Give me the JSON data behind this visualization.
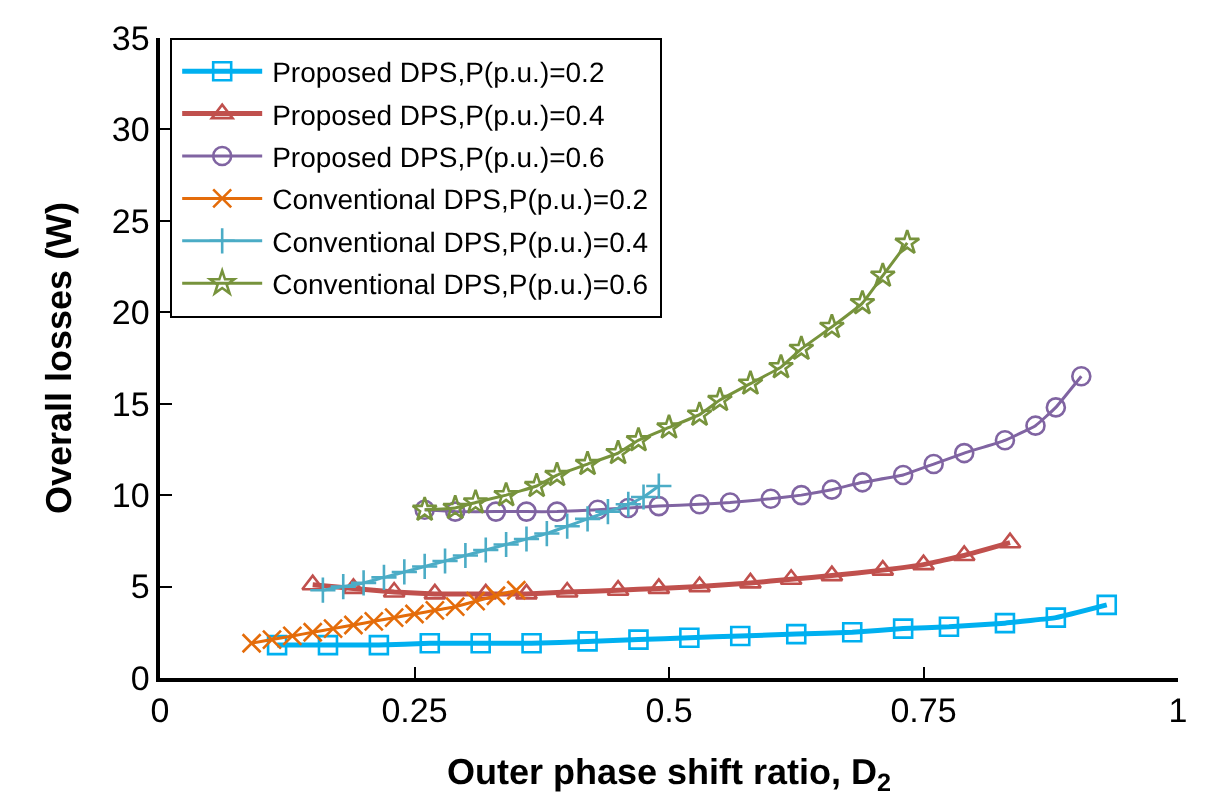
{
  "chart_data": {
    "type": "line",
    "xlabel": "Outer phase shift ratio, D$_{2}$",
    "ylabel": "Overall losses (W)",
    "xlim": [
      0,
      1
    ],
    "xticks": [
      0,
      0.25,
      0.5,
      0.75,
      1
    ],
    "ylim": [
      0,
      35
    ],
    "yticks": [
      0,
      5,
      10,
      15,
      20,
      25,
      30,
      35
    ],
    "legend": "top left",
    "series": [
      {
        "name": "Proposed DPS,P(p.u.)=0.2",
        "color": "#00b0f0",
        "marker": "square",
        "x": [
          0.115,
          0.165,
          0.215,
          0.265,
          0.315,
          0.365,
          0.42,
          0.47,
          0.52,
          0.57,
          0.625,
          0.68,
          0.73,
          0.775,
          0.83,
          0.88,
          0.93
        ],
        "values": [
          1.8,
          1.8,
          1.8,
          1.9,
          1.9,
          1.9,
          2.0,
          2.1,
          2.2,
          2.3,
          2.4,
          2.5,
          2.7,
          2.8,
          3.0,
          3.3,
          4.0
        ]
      },
      {
        "name": "Proposed DPS,P(p.u.)=0.4",
        "color": "#c0504d",
        "marker": "triangle",
        "x": [
          0.15,
          0.19,
          0.23,
          0.27,
          0.32,
          0.36,
          0.4,
          0.45,
          0.49,
          0.53,
          0.58,
          0.62,
          0.66,
          0.71,
          0.75,
          0.79,
          0.835
        ],
        "values": [
          5.1,
          4.9,
          4.7,
          4.6,
          4.6,
          4.6,
          4.7,
          4.8,
          4.9,
          5.0,
          5.2,
          5.4,
          5.6,
          5.9,
          6.2,
          6.7,
          7.4
        ]
      },
      {
        "name": "Proposed DPS,P(p.u.)=0.6",
        "color": "#8064a2",
        "marker": "circle",
        "x": [
          0.26,
          0.29,
          0.33,
          0.36,
          0.39,
          0.43,
          0.46,
          0.49,
          0.53,
          0.56,
          0.6,
          0.63,
          0.66,
          0.69,
          0.73,
          0.76,
          0.79,
          0.83,
          0.86,
          0.88,
          0.905
        ],
        "values": [
          9.2,
          9.1,
          9.1,
          9.1,
          9.1,
          9.2,
          9.3,
          9.4,
          9.5,
          9.6,
          9.8,
          10.0,
          10.3,
          10.7,
          11.1,
          11.7,
          12.3,
          13.0,
          13.8,
          14.8,
          16.5
        ]
      },
      {
        "name": "Conventional DPS,P(p.u.)=0.2",
        "color": "#e46c0a",
        "marker": "cross",
        "x": [
          0.09,
          0.11,
          0.13,
          0.15,
          0.17,
          0.19,
          0.21,
          0.23,
          0.25,
          0.27,
          0.29,
          0.31,
          0.33,
          0.35
        ],
        "values": [
          1.9,
          2.1,
          2.3,
          2.5,
          2.7,
          2.9,
          3.1,
          3.3,
          3.5,
          3.7,
          3.9,
          4.2,
          4.5,
          4.8
        ]
      },
      {
        "name": "Conventional DPS,P(p.u.)=0.4",
        "color": "#4bacc6",
        "marker": "plus",
        "x": [
          0.16,
          0.18,
          0.2,
          0.22,
          0.24,
          0.26,
          0.28,
          0.3,
          0.32,
          0.34,
          0.36,
          0.38,
          0.4,
          0.42,
          0.44,
          0.46,
          0.475,
          0.49
        ],
        "values": [
          4.8,
          5.0,
          5.2,
          5.5,
          5.8,
          6.1,
          6.4,
          6.7,
          7.0,
          7.3,
          7.6,
          7.9,
          8.3,
          8.7,
          9.1,
          9.5,
          9.9,
          10.5
        ]
      },
      {
        "name": "Conventional DPS,P(p.u.)=0.6",
        "color": "#77933c",
        "marker": "star",
        "x": [
          0.26,
          0.29,
          0.31,
          0.34,
          0.37,
          0.39,
          0.42,
          0.45,
          0.47,
          0.5,
          0.53,
          0.55,
          0.58,
          0.61,
          0.63,
          0.66,
          0.69,
          0.71,
          0.734
        ],
        "values": [
          9.2,
          9.3,
          9.6,
          10.0,
          10.5,
          11.1,
          11.7,
          12.3,
          13.0,
          13.7,
          14.4,
          15.2,
          16.1,
          17.0,
          18.0,
          19.2,
          20.5,
          22.0,
          23.8
        ]
      }
    ]
  }
}
